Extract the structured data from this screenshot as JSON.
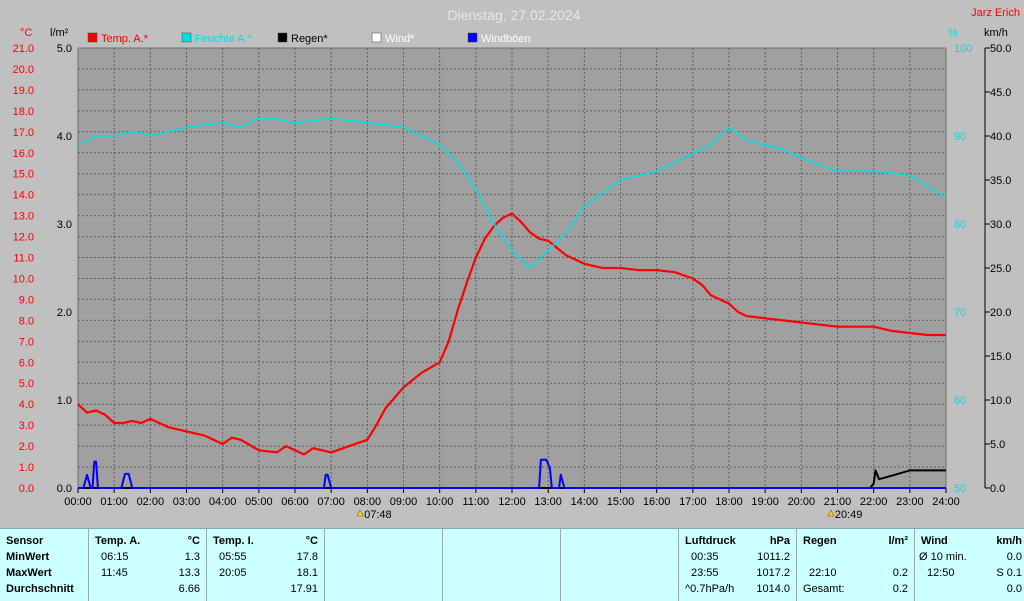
{
  "title": "Dienstag, 27.02.2024",
  "station": "Jarz Erich",
  "colors": {
    "temp": "#ff0000",
    "humidity": "#00e0e0",
    "rain": "#000000",
    "wind": "#ffffff",
    "gust": "#0000ff",
    "plot_bg": "#a0a0a0",
    "grid": "#606060"
  },
  "axes": {
    "left_temp": {
      "unit": "°C",
      "min": 0,
      "max": 21,
      "ticks": [
        "0.0",
        "1.0",
        "2.0",
        "3.0",
        "4.0",
        "5.0",
        "6.0",
        "7.0",
        "8.0",
        "9.0",
        "10.0",
        "11.0",
        "12.0",
        "13.0",
        "14.0",
        "15.0",
        "16.0",
        "17.0",
        "18.0",
        "19.0",
        "20.0",
        "21.0"
      ]
    },
    "left_rain": {
      "unit": "l/m²",
      "min": 0,
      "max": 5,
      "ticks": [
        "0.0",
        "1.0",
        "2.0",
        "3.0",
        "4.0",
        "5.0"
      ]
    },
    "right_humidity": {
      "unit": "%",
      "min": 50,
      "max": 100,
      "ticks": [
        "50",
        "60",
        "70",
        "80",
        "90",
        "100"
      ]
    },
    "right_wind": {
      "unit": "km/h",
      "min": 0,
      "max": 50,
      "ticks": [
        "0.0",
        "5.0",
        "10.0",
        "15.0",
        "20.0",
        "25.0",
        "30.0",
        "35.0",
        "40.0",
        "45.0",
        "50.0"
      ]
    },
    "x_ticks": [
      "00:00",
      "01:00",
      "02:00",
      "03:00",
      "04:00",
      "05:00",
      "06:00",
      "07:00",
      "08:00",
      "09:00",
      "10:00",
      "11:00",
      "12:00",
      "13:00",
      "14:00",
      "15:00",
      "16:00",
      "17:00",
      "18:00",
      "19:00",
      "20:00",
      "21:00",
      "22:00",
      "23:00",
      "24:00"
    ]
  },
  "sun": {
    "sunrise": "07:48",
    "sunset": "20:49"
  },
  "chart_data": {
    "type": "line",
    "title": "Dienstag, 27.02.2024",
    "x_unit": "hour",
    "grid": true,
    "legend": "top-left",
    "series": [
      {
        "name": "Temp. A.*",
        "axis": "left_temp",
        "x": [
          0,
          0.25,
          0.5,
          0.75,
          1,
          1.25,
          1.5,
          1.75,
          2,
          2.5,
          3,
          3.5,
          4,
          4.25,
          4.5,
          5,
          5.5,
          5.75,
          6,
          6.25,
          6.5,
          6.75,
          7,
          7.5,
          8,
          8.25,
          8.5,
          9,
          9.5,
          10,
          10.25,
          10.5,
          10.75,
          11,
          11.25,
          11.5,
          11.75,
          12,
          12.25,
          12.5,
          12.75,
          13,
          13.5,
          14,
          14.5,
          15,
          15.5,
          16,
          16.5,
          17,
          17.25,
          17.5,
          18,
          18.25,
          18.5,
          19,
          19.5,
          20,
          20.5,
          21,
          21.5,
          22,
          22.5,
          23,
          23.5,
          24
        ],
        "y": [
          4.0,
          3.6,
          3.7,
          3.5,
          3.1,
          3.1,
          3.2,
          3.1,
          3.3,
          2.9,
          2.7,
          2.5,
          2.1,
          2.4,
          2.3,
          1.8,
          1.7,
          2.0,
          1.8,
          1.6,
          1.9,
          1.8,
          1.7,
          2.0,
          2.3,
          3.0,
          3.8,
          4.8,
          5.5,
          6.0,
          7.0,
          8.5,
          9.8,
          11.0,
          11.9,
          12.5,
          12.9,
          13.1,
          12.7,
          12.2,
          11.9,
          11.8,
          11.1,
          10.7,
          10.5,
          10.5,
          10.4,
          10.4,
          10.3,
          10.0,
          9.7,
          9.2,
          8.8,
          8.4,
          8.2,
          8.1,
          8.0,
          7.9,
          7.8,
          7.7,
          7.7,
          7.7,
          7.5,
          7.4,
          7.3,
          7.3
        ]
      },
      {
        "name": "Feuchte A.*",
        "axis": "right_humidity",
        "x": [
          0,
          0.5,
          1,
          1.5,
          2,
          3,
          4,
          4.5,
          5,
          5.5,
          6,
          7,
          8,
          9,
          9.5,
          10,
          10.5,
          11,
          11.5,
          12,
          12.5,
          13,
          13.5,
          14,
          15,
          16,
          17,
          17.5,
          18,
          18.5,
          19,
          19.5,
          20,
          21,
          22,
          23,
          24
        ],
        "y": [
          89,
          90,
          90,
          90.5,
          90,
          91,
          91.5,
          91,
          92,
          92,
          91.5,
          92,
          91.5,
          91,
          90,
          89,
          87,
          84,
          80,
          77,
          75,
          77,
          79,
          82,
          85,
          86,
          88,
          89,
          91,
          89.5,
          89,
          88.5,
          87.5,
          86,
          86,
          85.5,
          83
        ]
      },
      {
        "name": "Regen*",
        "axis": "left_rain",
        "x": [
          0,
          21.9,
          22,
          22.05,
          22.15,
          22.5,
          23,
          23.5,
          24
        ],
        "y": [
          0,
          0,
          0.05,
          0.2,
          0.1,
          0.14,
          0.2,
          0.2,
          0.2
        ]
      },
      {
        "name": "Wind*",
        "axis": "right_wind",
        "x": [],
        "y": []
      },
      {
        "name": "Windböen",
        "axis": "right_wind",
        "x": [
          0,
          0.15,
          0.25,
          0.35,
          0.4,
          0.45,
          0.5,
          0.55,
          0.65,
          0.75,
          1.2,
          1.3,
          1.4,
          1.5,
          1.6,
          1.7,
          6.8,
          6.85,
          6.9,
          7.0,
          7.05,
          7.15,
          12.75,
          12.8,
          12.85,
          12.95,
          13.05,
          13.1,
          13.15,
          13.3,
          13.35,
          13.45,
          13.5,
          24
        ],
        "y": [
          0,
          0,
          1.5,
          0,
          0,
          3.0,
          3.0,
          0,
          0,
          0,
          0,
          1.6,
          1.6,
          0,
          0,
          0,
          0,
          1.5,
          1.5,
          0,
          0,
          0,
          0,
          3.2,
          3.2,
          3.2,
          2.2,
          0,
          0,
          0,
          1.5,
          0,
          0,
          0
        ]
      }
    ]
  },
  "table": {
    "sensor": {
      "header": "Sensor",
      "rows": [
        "MinWert",
        "MaxWert",
        "Durchschnitt"
      ]
    },
    "temp_a": {
      "header": "Temp. A.",
      "unit": "°C",
      "rows": [
        [
          "06:15",
          "1.3"
        ],
        [
          "11:45",
          "13.3"
        ],
        [
          "",
          "6.66"
        ]
      ]
    },
    "temp_i": {
      "header": "Temp. I.",
      "unit": "°C",
      "rows": [
        [
          "05:55",
          "17.8"
        ],
        [
          "20:05",
          "18.1"
        ],
        [
          "",
          "17.91"
        ]
      ]
    },
    "pressure": {
      "header": "Luftdruck",
      "unit": "hPa",
      "rows": [
        [
          "00:35",
          "1011.2"
        ],
        [
          "23:55",
          "1017.2"
        ],
        [
          "^0.7hPa/h",
          "1014.0"
        ]
      ]
    },
    "rain": {
      "header": "Regen",
      "unit": "l/m²",
      "rows": [
        [
          "",
          ""
        ],
        [
          "22:10",
          "0.2"
        ],
        [
          "Gesamt:",
          "0.2"
        ]
      ]
    },
    "wind": {
      "header": "Wind",
      "unit": "km/h",
      "rows": [
        [
          "Ø 10 min.",
          "0.0"
        ],
        [
          "12:50",
          "S 0.1"
        ],
        [
          "",
          "0.0"
        ]
      ]
    }
  }
}
